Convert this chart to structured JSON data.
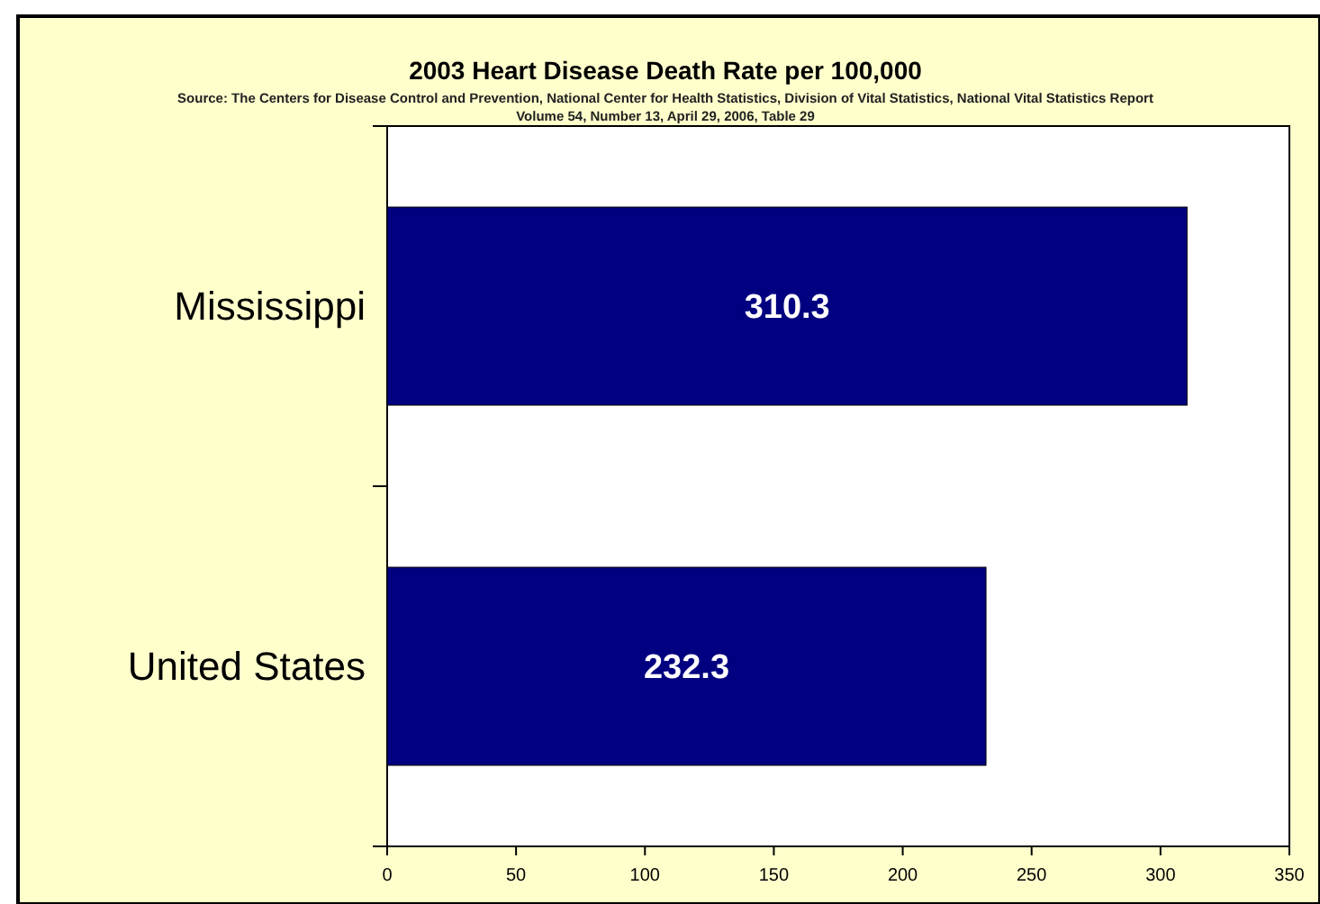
{
  "chart_data": {
    "type": "bar",
    "orientation": "horizontal",
    "title": "2003 Heart Disease Death Rate per 100,000",
    "subtitle": "Source: The Centers for Disease Control and Prevention, National Center for Health Statistics, Division of Vital Statistics, National Vital Statistics Report\nVolume 54, Number 13, April 29, 2006, Table 29",
    "categories": [
      "Mississippi",
      "United States"
    ],
    "values": [
      310.3,
      232.3
    ],
    "color": "#000080",
    "xlim": [
      0,
      350
    ],
    "xticks": [
      0,
      50,
      100,
      150,
      200,
      250,
      300,
      350
    ],
    "data_labels": true,
    "grid": false
  }
}
